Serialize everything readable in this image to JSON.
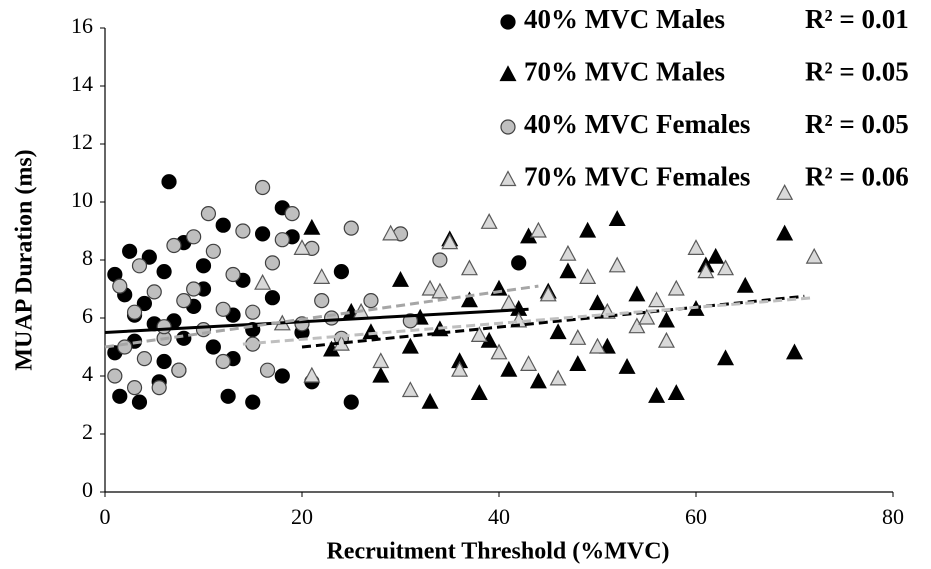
{
  "chart_data": {
    "type": "scatter",
    "xlabel": "Recruitment Threshold (%MVC)",
    "ylabel": "MUAP Duration (ms)",
    "xlim": [
      0,
      80
    ],
    "xticks": [
      0,
      20,
      40,
      60,
      80
    ],
    "ylim": [
      0,
      16
    ],
    "yticks": [
      0,
      2,
      4,
      6,
      8,
      10,
      12,
      14,
      16
    ],
    "grid": false,
    "legend": "top-right",
    "series": [
      {
        "name": "40% MVC Males",
        "r2_label": "R² = 0.01",
        "marker": "circle",
        "color": "#000000",
        "edge": "#000000",
        "trendline": {
          "x": [
            0,
            43
          ],
          "y": [
            5.5,
            6.3
          ],
          "color": "#000000",
          "style": "solid"
        },
        "x": [
          1,
          1.5,
          2,
          2.5,
          3,
          3.5,
          4,
          4.5,
          5,
          5.5,
          6,
          6.5,
          7,
          7.5,
          8,
          9,
          10,
          11,
          12,
          12.5,
          13,
          14,
          15,
          16,
          17,
          18,
          19,
          20,
          21,
          24,
          25,
          42,
          1,
          3,
          6,
          8,
          10,
          13,
          15,
          18
        ],
        "values": [
          7.5,
          3.3,
          6.8,
          8.3,
          5.2,
          3.1,
          6.5,
          8.1,
          5.8,
          3.8,
          7.6,
          10.7,
          5.9,
          4.2,
          8.6,
          6.4,
          7.0,
          5.0,
          9.2,
          3.3,
          6.1,
          7.3,
          3.1,
          8.9,
          6.7,
          9.8,
          8.8,
          5.5,
          3.8,
          7.6,
          3.1,
          7.9,
          4.8,
          6.1,
          4.5,
          5.3,
          7.8,
          4.6,
          5.6,
          4.0
        ]
      },
      {
        "name": "70% MVC Males",
        "r2_label": "R² = 0.05",
        "marker": "triangle",
        "color": "#000000",
        "edge": "#000000",
        "trendline": {
          "x": [
            20,
            71
          ],
          "y": [
            5.0,
            6.75
          ],
          "color": "#000000",
          "style": "dashed"
        },
        "x": [
          21,
          23,
          25,
          27,
          28,
          30,
          31,
          32,
          33,
          34,
          35,
          36,
          37,
          38,
          39,
          40,
          41,
          42,
          43,
          44,
          45,
          46,
          47,
          48,
          49,
          50,
          51,
          52,
          53,
          54,
          56,
          57,
          58,
          60,
          61,
          62,
          63,
          65,
          69,
          70
        ],
        "values": [
          9.1,
          4.9,
          6.2,
          5.5,
          4.0,
          7.3,
          5.0,
          6.0,
          3.1,
          5.6,
          8.7,
          4.5,
          6.6,
          3.4,
          5.2,
          7.0,
          4.2,
          6.3,
          8.8,
          3.8,
          6.9,
          5.5,
          7.6,
          4.4,
          9.0,
          6.5,
          5.0,
          9.4,
          4.3,
          6.8,
          3.3,
          5.9,
          3.4,
          6.3,
          7.8,
          8.1,
          4.6,
          7.1,
          8.9,
          4.8
        ]
      },
      {
        "name": "40% MVC Females",
        "r2_label": "R² = 0.05",
        "marker": "circle",
        "color": "#bfbfbf",
        "edge": "#404040",
        "trendline": {
          "x": [
            0,
            44
          ],
          "y": [
            5.0,
            7.1
          ],
          "color": "#a6a6a6",
          "style": "dashed"
        },
        "x": [
          1,
          1.5,
          2,
          3,
          3.5,
          4,
          5,
          5.5,
          6,
          7,
          7.5,
          8,
          9,
          10,
          10.5,
          11,
          12,
          13,
          14,
          15,
          16,
          16.5,
          17,
          18,
          19,
          20,
          21,
          22,
          23,
          24,
          25,
          27,
          30,
          31,
          34,
          3,
          6,
          9,
          12,
          15
        ],
        "values": [
          4.0,
          7.1,
          5.0,
          3.6,
          7.8,
          4.6,
          6.9,
          3.6,
          5.3,
          8.5,
          4.2,
          6.6,
          8.8,
          5.6,
          9.6,
          8.3,
          4.5,
          7.5,
          9.0,
          6.2,
          10.5,
          4.2,
          7.9,
          8.7,
          9.6,
          5.8,
          8.4,
          6.6,
          6.0,
          5.3,
          9.1,
          6.6,
          8.9,
          5.9,
          8.0,
          6.2,
          5.7,
          7.0,
          6.3,
          5.1
        ]
      },
      {
        "name": "70% MVC Females",
        "r2_label": "R² = 0.06",
        "marker": "triangle",
        "color": "#d9d9d9",
        "edge": "#595959",
        "trendline": {
          "x": [
            14,
            72
          ],
          "y": [
            5.1,
            6.7
          ],
          "color": "#bfbfbf",
          "style": "dashed"
        },
        "x": [
          16,
          18,
          20,
          21,
          22,
          24,
          26,
          28,
          29,
          31,
          33,
          34,
          35,
          36,
          37,
          38,
          39,
          40,
          41,
          42,
          43,
          44,
          45,
          46,
          47,
          48,
          49,
          50,
          51,
          52,
          54,
          55,
          56,
          57,
          58,
          60,
          61,
          63,
          69,
          72
        ],
        "values": [
          7.2,
          5.8,
          8.4,
          4.0,
          7.4,
          5.1,
          6.2,
          4.5,
          8.9,
          3.5,
          7.0,
          6.9,
          8.6,
          4.2,
          7.7,
          5.4,
          9.3,
          4.8,
          6.5,
          5.9,
          4.4,
          9.0,
          6.8,
          3.9,
          8.2,
          5.3,
          7.4,
          5.0,
          6.2,
          7.8,
          5.7,
          6.0,
          6.6,
          5.2,
          7.0,
          8.4,
          7.6,
          7.7,
          10.3,
          8.1
        ]
      }
    ]
  }
}
